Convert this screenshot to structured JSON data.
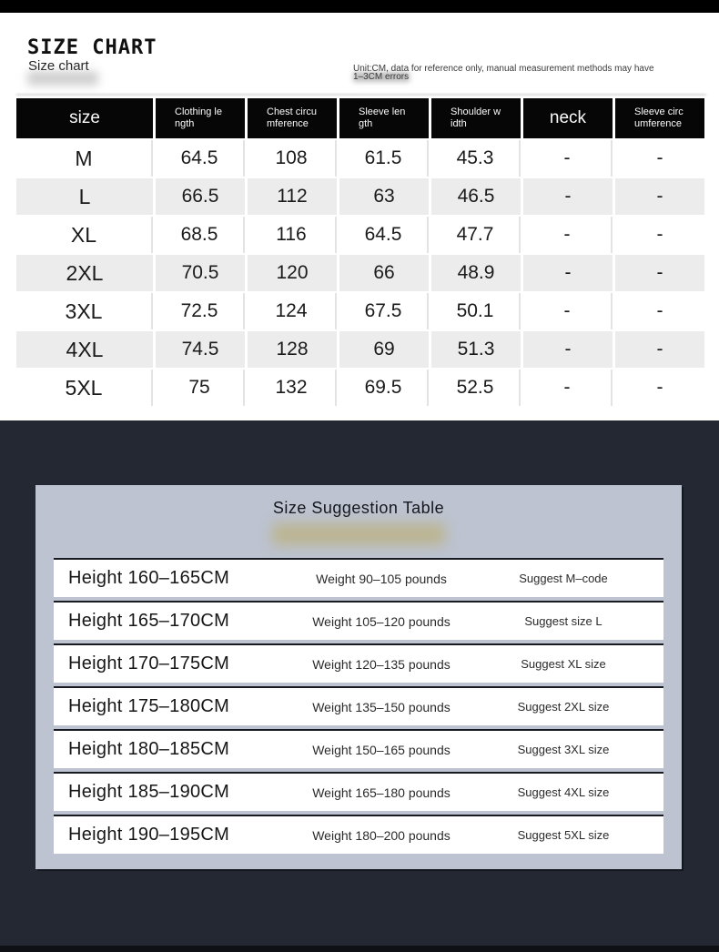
{
  "header": {
    "title": "SIZE CHART",
    "subtitle": "Size chart",
    "note_line1": "Unit:CM, data for reference only, manual measurement methods may have",
    "note_line2": "1–3CM errors"
  },
  "size_table": {
    "header_cells": [
      "size",
      "Clothing length",
      "Chest circumference",
      "Sleeve length",
      "Shoulder width",
      "neck",
      "Sleeve circumference"
    ],
    "rows": [
      {
        "cells": [
          "M",
          "64.5",
          "108",
          "61.5",
          "45.3",
          "-",
          "-"
        ]
      },
      {
        "cells": [
          "L",
          "66.5",
          "112",
          "63",
          "46.5",
          "-",
          "-"
        ]
      },
      {
        "cells": [
          "XL",
          "68.5",
          "116",
          "64.5",
          "47.7",
          "-",
          "-"
        ]
      },
      {
        "cells": [
          "2XL",
          "70.5",
          "120",
          "66",
          "48.9",
          "-",
          "-"
        ]
      },
      {
        "cells": [
          "3XL",
          "72.5",
          "124",
          "67.5",
          "50.1",
          "-",
          "-"
        ]
      },
      {
        "cells": [
          "4XL",
          "74.5",
          "128",
          "69",
          "51.3",
          "-",
          "-"
        ]
      },
      {
        "cells": [
          "5XL",
          "75",
          "132",
          "69.5",
          "52.5",
          "-",
          "-"
        ]
      }
    ]
  },
  "suggestion_table": {
    "title": "Size Suggestion Table",
    "rows": [
      {
        "height": "Height 160–165CM",
        "weight": "Weight 90–105 pounds",
        "suggest": "Suggest M–code"
      },
      {
        "height": "Height 165–170CM",
        "weight": "Weight 105–120 pounds",
        "suggest": "Suggest size L"
      },
      {
        "height": "Height 170–175CM",
        "weight": "Weight 120–135 pounds",
        "suggest": "Suggest XL size"
      },
      {
        "height": "Height 175–180CM",
        "weight": "Weight 135–150 pounds",
        "suggest": "Suggest 2XL size"
      },
      {
        "height": "Height 180–185CM",
        "weight": "Weight 150–165 pounds",
        "suggest": "Suggest 3XL size"
      },
      {
        "height": "Height 185–190CM",
        "weight": "Weight 165–180 pounds",
        "suggest": "Suggest 4XL size"
      },
      {
        "height": "Height 190–195CM",
        "weight": "Weight 180–200 pounds",
        "suggest": "Suggest 5XL size"
      }
    ]
  },
  "colors": {
    "top_bar": "#000000",
    "dark_background": "#232832",
    "panel_background": "#bdc3d0",
    "header_cell_background": "#060606",
    "alt_row_background": "#ececec",
    "suggestion_row_border": "#171a21"
  }
}
